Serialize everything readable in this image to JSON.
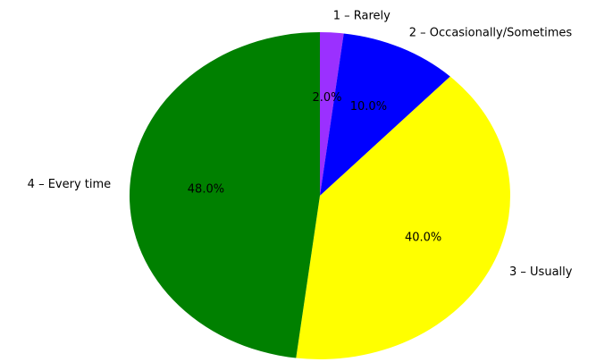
{
  "chart_data": {
    "type": "pie",
    "title": "",
    "categories": [
      "1 – Rarely",
      "2 – Occasionally/Sometimes",
      "3 – Usually",
      "4 – Every time"
    ],
    "values": [
      2.0,
      10.0,
      40.0,
      48.0
    ],
    "value_labels": [
      "2.0%",
      "10.0%",
      "40.0%",
      "48.0%"
    ],
    "colors": [
      "#9b30ff",
      "#0000ff",
      "#ffff00",
      "#008000"
    ],
    "start_angle": "top (12 o'clock)",
    "direction": "clockwise",
    "legend": "none",
    "grid": false
  }
}
